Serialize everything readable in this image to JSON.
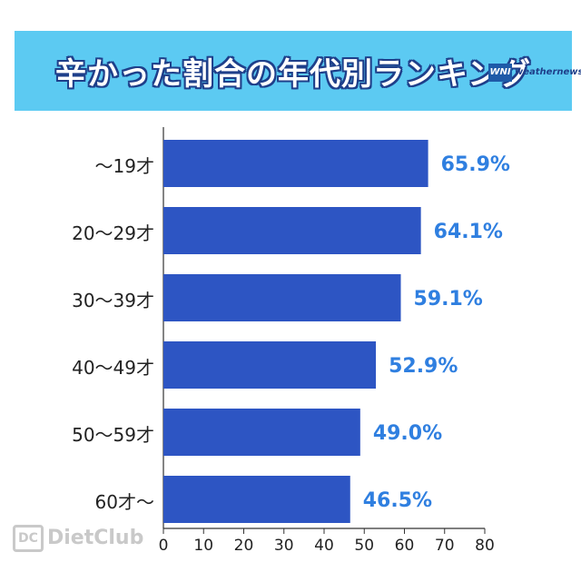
{
  "header": {
    "title": "辛かった割合の年代別ランキング",
    "brand_mark": "WNI",
    "brand_name": "weathernews"
  },
  "watermark": {
    "icon_text": "DC",
    "text": "DietClub"
  },
  "chart_data": {
    "type": "bar",
    "orientation": "horizontal",
    "categories": [
      "〜19才",
      "20〜29才",
      "30〜39才",
      "40〜49才",
      "50〜59才",
      "60才〜"
    ],
    "values": [
      65.9,
      64.1,
      59.1,
      52.9,
      49.0,
      46.5
    ],
    "data_labels": [
      "65.9%",
      "64.1%",
      "59.1%",
      "52.9%",
      "49.0%",
      "46.5%"
    ],
    "xlim": [
      0,
      80
    ],
    "xticks": [
      0,
      10,
      20,
      30,
      40,
      50,
      60,
      70,
      80
    ],
    "grid": false,
    "bar_color": "#2d55c3",
    "label_color": "#2f7fe0"
  }
}
